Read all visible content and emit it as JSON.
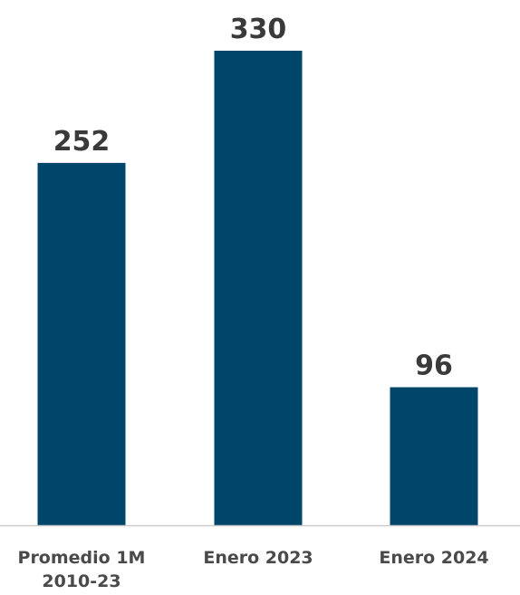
{
  "chart_data": {
    "type": "bar",
    "categories": [
      "Promedio 1M 2010-23",
      "Enero 2023",
      "Enero 2024"
    ],
    "category_lines": [
      [
        "Promedio 1M",
        "2010-23"
      ],
      [
        "Enero 2023"
      ],
      [
        "Enero 2024"
      ]
    ],
    "values": [
      252,
      330,
      96
    ],
    "data_labels": [
      "252",
      "330",
      "96"
    ],
    "ylim": [
      0,
      330
    ],
    "grid": false,
    "bar_color": "#00456a",
    "axis_color": "#cccccc",
    "value_label_color": "#3a3a3a",
    "category_label_color": "#4a4a4a"
  }
}
